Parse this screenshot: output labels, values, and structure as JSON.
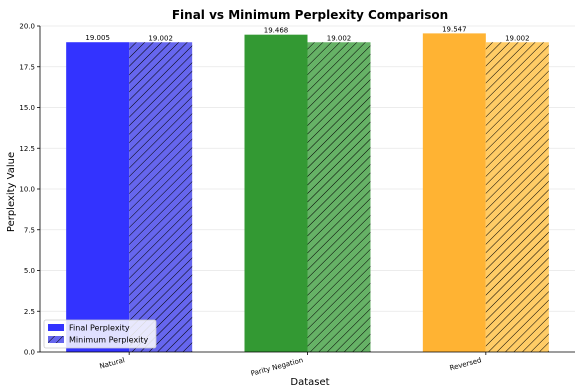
{
  "chart_data": {
    "type": "bar",
    "title": "Final vs Minimum Perplexity Comparison",
    "xlabel": "Dataset",
    "ylabel": "Perplexity Value",
    "categories": [
      "Natural",
      "Parity Negation",
      "Reversed"
    ],
    "series": [
      {
        "name": "Final Perplexity",
        "values": [
          19.005,
          19.468,
          19.547
        ],
        "labels": [
          "19.005",
          "19.468",
          "19.547"
        ],
        "colors": [
          "#3333ff",
          "#339933",
          "#ffb333"
        ],
        "hatched": false
      },
      {
        "name": "Minimum Perplexity",
        "values": [
          19.002,
          19.002,
          19.002
        ],
        "labels": [
          "19.002",
          "19.002",
          "19.002"
        ],
        "colors": [
          "#6666ee",
          "#66b266",
          "#ffcc66"
        ],
        "hatched": true
      }
    ],
    "ylim": [
      0,
      20.0
    ],
    "yticks": [
      "0.0",
      "2.5",
      "5.0",
      "7.5",
      "10.0",
      "12.5",
      "15.0",
      "17.5",
      "20.0"
    ],
    "grid": true,
    "legend_position": "lower-left",
    "legend_colors": [
      "#3333ff",
      "#6666ee"
    ]
  }
}
